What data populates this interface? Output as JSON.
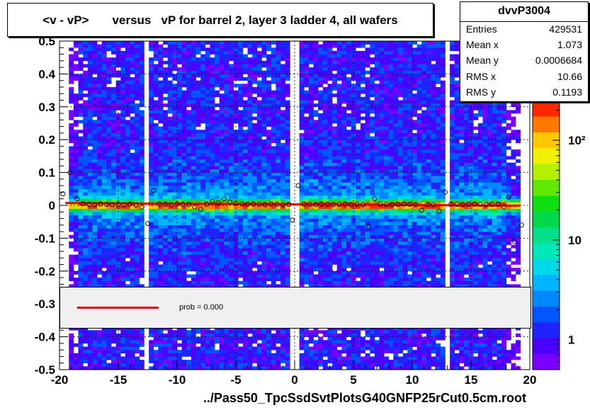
{
  "title": "<v - vP>       versus   vP for barrel 2, layer 3 ladder 4, all wafers",
  "stats": {
    "name": "dvvP3004",
    "rows": [
      {
        "label": "Entries",
        "value": "429531"
      },
      {
        "label": "Mean x",
        "value": "1.073"
      },
      {
        "label": "Mean y",
        "value": "0.0006684"
      },
      {
        "label": "RMS x",
        "value": "10.66"
      },
      {
        "label": "RMS y",
        "value": "0.1193"
      }
    ]
  },
  "legend": {
    "text": "prob = 0.000"
  },
  "chart_data": {
    "type": "heatmap",
    "xlabel": "../Pass50_TpcSsdSvtPlotsG40GNFP25rCut0.5cm.root",
    "ylabel": "",
    "xlim": [
      -20,
      20
    ],
    "ylim": [
      -0.5,
      0.5
    ],
    "x_ticks": [
      -20,
      -15,
      -10,
      -5,
      0,
      5,
      10,
      15,
      20
    ],
    "x_tick_labels": [
      "-20",
      "-15",
      "-10",
      "-5",
      "0",
      "5",
      "10",
      "15",
      "20"
    ],
    "y_ticks": [
      -0.5,
      -0.4,
      -0.3,
      -0.2,
      -0.1,
      0,
      0.1,
      0.2,
      0.3,
      0.4,
      0.5
    ],
    "y_tick_labels": [
      "-0.5",
      "-0.4",
      "-0.3",
      "-0.2",
      "-0.1",
      "0",
      "0.1",
      "0.2",
      "0.3",
      "0.4",
      "0.5"
    ],
    "z_scale": "log",
    "z_ticks": [
      1,
      10,
      100
    ],
    "z_tick_labels": [
      "1",
      "10",
      "10²"
    ],
    "grid": true,
    "empty_columns_x": [
      -12.5,
      0,
      13
    ],
    "profile_points": [
      {
        "x": -19.7,
        "y": 0.035
      },
      {
        "x": -19.1,
        "y": 0.1
      },
      {
        "x": -18.5,
        "y": 0.02
      },
      {
        "x": -18.0,
        "y": 0.005
      },
      {
        "x": -17.5,
        "y": 0.003
      },
      {
        "x": -17.0,
        "y": 0.002
      },
      {
        "x": -16.5,
        "y": 0.004
      },
      {
        "x": -16.0,
        "y": 0.003
      },
      {
        "x": -15.5,
        "y": 0.002
      },
      {
        "x": -15.0,
        "y": 0.003
      },
      {
        "x": -14.5,
        "y": 0.002
      },
      {
        "x": -14.0,
        "y": 0.004
      },
      {
        "x": -13.5,
        "y": 0.001
      },
      {
        "x": -13.0,
        "y": -0.005
      },
      {
        "x": -12.5,
        "y": -0.055
      },
      {
        "x": -12.0,
        "y": 0.045
      },
      {
        "x": -11.5,
        "y": 0.004
      },
      {
        "x": -11.0,
        "y": 0.003
      },
      {
        "x": -10.5,
        "y": 0.002
      },
      {
        "x": -10.0,
        "y": 0.004
      },
      {
        "x": -9.5,
        "y": 0.003
      },
      {
        "x": -9.0,
        "y": 0.002
      },
      {
        "x": -8.5,
        "y": -0.005
      },
      {
        "x": -8.0,
        "y": -0.012
      },
      {
        "x": -7.5,
        "y": 0.004
      },
      {
        "x": -7.0,
        "y": 0.012
      },
      {
        "x": -6.5,
        "y": 0.008
      },
      {
        "x": -6.0,
        "y": 0.02
      },
      {
        "x": -5.5,
        "y": 0.01
      },
      {
        "x": -5.0,
        "y": 0.006
      },
      {
        "x": -4.5,
        "y": 0.005
      },
      {
        "x": -4.0,
        "y": 0.003
      },
      {
        "x": -3.5,
        "y": 0.004
      },
      {
        "x": -3.0,
        "y": 0.003
      },
      {
        "x": -2.5,
        "y": 0.002
      },
      {
        "x": -2.0,
        "y": 0.004
      },
      {
        "x": -1.5,
        "y": 0.003
      },
      {
        "x": -1.0,
        "y": 0.002
      },
      {
        "x": -0.5,
        "y": 0.003
      },
      {
        "x": -0.2,
        "y": -0.045
      },
      {
        "x": 0.3,
        "y": 0.06
      },
      {
        "x": 0.8,
        "y": 0.004
      },
      {
        "x": 1.3,
        "y": 0.003
      },
      {
        "x": 1.8,
        "y": 0.002
      },
      {
        "x": 2.3,
        "y": 0.004
      },
      {
        "x": 2.8,
        "y": 0.003
      },
      {
        "x": 3.3,
        "y": 0.002
      },
      {
        "x": 3.8,
        "y": 0.003
      },
      {
        "x": 4.3,
        "y": 0.004
      },
      {
        "x": 4.8,
        "y": 0.002
      },
      {
        "x": 5.3,
        "y": 0.003
      },
      {
        "x": 5.8,
        "y": 0.002
      },
      {
        "x": 6.3,
        "y": -0.065
      },
      {
        "x": 6.8,
        "y": 0.02
      },
      {
        "x": 7.3,
        "y": 0.004
      },
      {
        "x": 7.8,
        "y": 0.003
      },
      {
        "x": 8.3,
        "y": 0.002
      },
      {
        "x": 8.8,
        "y": 0.003
      },
      {
        "x": 9.3,
        "y": 0.004
      },
      {
        "x": 9.8,
        "y": 0.003
      },
      {
        "x": 10.3,
        "y": 0.002
      },
      {
        "x": 10.8,
        "y": -0.015
      },
      {
        "x": 11.3,
        "y": 0.003
      },
      {
        "x": 11.8,
        "y": 0.002
      },
      {
        "x": 12.3,
        "y": -0.018
      },
      {
        "x": 12.8,
        "y": 0.04
      },
      {
        "x": 13.3,
        "y": 0.004
      },
      {
        "x": 13.8,
        "y": 0.003
      },
      {
        "x": 14.3,
        "y": 0.002
      },
      {
        "x": 14.8,
        "y": 0.003
      },
      {
        "x": 15.3,
        "y": 0.004
      },
      {
        "x": 15.8,
        "y": 0.003
      },
      {
        "x": 16.3,
        "y": 0.002
      },
      {
        "x": 16.8,
        "y": 0.003
      },
      {
        "x": 17.3,
        "y": 0.004
      },
      {
        "x": 17.8,
        "y": -0.005
      },
      {
        "x": 18.2,
        "y": 0.025
      },
      {
        "x": 18.7,
        "y": -0.11
      },
      {
        "x": 19.3,
        "y": -0.06
      }
    ],
    "fit_line": {
      "x": [
        -19.5,
        19.2
      ],
      "y": [
        0.007,
        -0.001
      ],
      "color": "#e00000"
    },
    "palette": [
      "#7a00ff",
      "#4b00ff",
      "#1e23ff",
      "#0055ff",
      "#0088ff",
      "#00b4ff",
      "#00d8e8",
      "#00e8b8",
      "#00e088",
      "#00d84a",
      "#10e010",
      "#60e800",
      "#b4f000",
      "#f0f000",
      "#ffc800",
      "#ff7800",
      "#ff2800"
    ]
  }
}
